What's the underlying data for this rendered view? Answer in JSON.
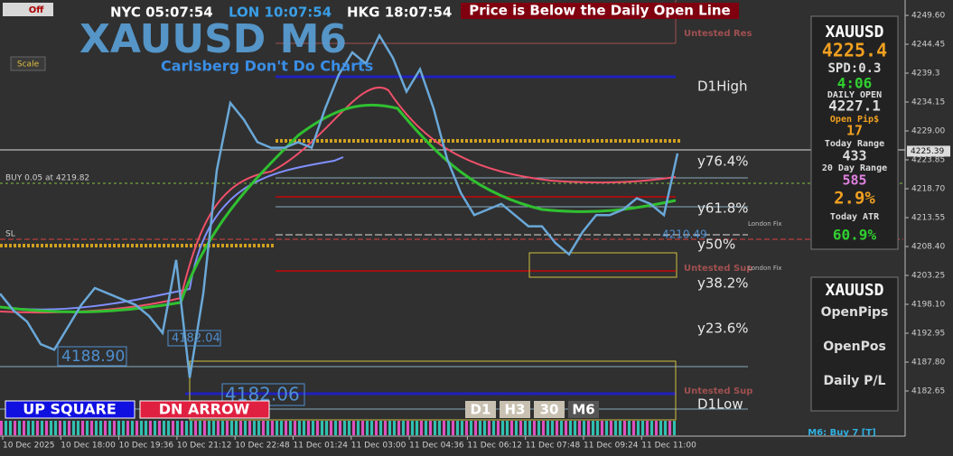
{
  "header": {
    "logo": "Off",
    "clocks": [
      "NYC 05:07:54",
      "LON 10:07:54",
      "HKG 18:07:54"
    ],
    "alert": "Price is Below the Daily Open Line",
    "symbol_title": "XAUUSD M6",
    "subtitle": "Carlsberg Don't Do Charts",
    "scale_button": "Scale"
  },
  "price_axis": {
    "ticks": [
      {
        "value": 4249.6,
        "label": "4249.60"
      },
      4244.45,
      4239.3,
      4234.15,
      {
        "value": 4229,
        "label": "4229.00"
      },
      4223.85,
      {
        "value": 4218.7,
        "label": "4218.70"
      },
      4213.55,
      {
        "value": 4208.4,
        "label": "4208.40"
      },
      4203.25,
      {
        "value": 4198.1,
        "label": "4198.10"
      },
      4192.95,
      {
        "value": 4187.8,
        "label": "4187.80"
      },
      4182.65
    ],
    "current": 4225.39
  },
  "time_axis": [
    "10 Dec 2025",
    "10 Dec 18:00",
    "10 Dec 19:36",
    "10 Dec 21:12",
    "10 Dec 22:48",
    "11 Dec 01:24",
    "11 Dec 03:00",
    "11 Dec 04:36",
    "11 Dec 06:12",
    "11 Dec 07:48",
    "11 Dec 09:24",
    "11 Dec 11:00"
  ],
  "price_trace": [
    4200,
    4197,
    4195,
    4191,
    4190,
    4194,
    4198,
    4201,
    4200,
    4199,
    4198,
    4196,
    4193,
    4206,
    4185,
    4200,
    4222,
    4234,
    4231,
    4227,
    4226,
    4226,
    4227,
    4226,
    4233,
    4239,
    4243,
    4241,
    4246,
    4242,
    4236,
    4240,
    4233,
    4224,
    4218,
    4214,
    4215,
    4216,
    4214,
    4212,
    4212,
    4209,
    4207,
    4211,
    4214,
    4214,
    4215,
    4217,
    4216,
    4214,
    4225
  ],
  "annotations": {
    "untested_res": "Untested Res",
    "d1_high": "D1High",
    "fib_764": "y76.4%",
    "fib_618": "y61.8%",
    "fib_50": "y50%",
    "fib_382": "y38.2%",
    "fib_236": "y23.6%",
    "d1_low": "D1Low",
    "untested_sup_1": "Untested Sup",
    "untested_sup_2": "Untested Sup",
    "london_fix_1": "London Fix",
    "london_fix_2": "London Fix",
    "buy_order": "BUY 0.05 at 4219.82",
    "sl": "SL",
    "price_1": "4188.90",
    "price_2": "4182.04",
    "price_3": "4182.06",
    "price_4": "4210.49"
  },
  "panel": {
    "symbol": "XAUUSD",
    "price": "4225.4",
    "spread": "SPD:0.3",
    "timer": "4:06",
    "daily_open_label": "DAILY OPEN",
    "daily_open": "4227.1",
    "open_pips_label": "Open Pip$",
    "open_pips": "17",
    "today_range_label": "Today Range",
    "today_range": "433",
    "range20_label": "20 Day Range",
    "range20": "585",
    "ratio": "2.9%",
    "atr_label": "Today ATR",
    "atr": "60.9%"
  },
  "panel2": {
    "symbol": "XAUUSD",
    "rows": [
      "OpenPips",
      "OpenPos",
      "Daily P/L"
    ]
  },
  "buttons": [
    "UP SQUARE",
    "DN ARROW"
  ],
  "timeframes": [
    "D1",
    "H3",
    "30",
    "M6"
  ],
  "status": "M6: Buy 7 [T]"
}
